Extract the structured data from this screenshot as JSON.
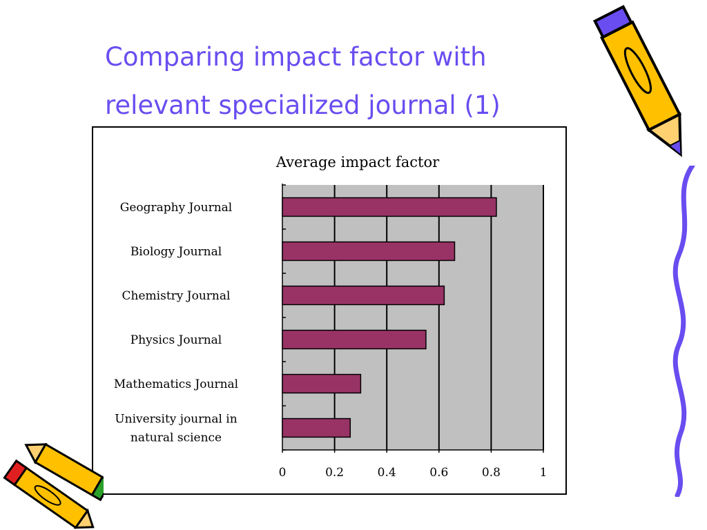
{
  "slide": {
    "title_line1": "Comparing impact factor with",
    "title_line2": "relevant specialized journal (1)",
    "title_color": "#6a4df0"
  },
  "chart_data": {
    "type": "bar",
    "orientation": "horizontal",
    "title": "Average impact factor",
    "categories": [
      "Geography Journal",
      "Biology Journal",
      "Chemistry Journal",
      "Physics Journal",
      "Mathematics Journal",
      "University journal in natural science"
    ],
    "category_lines": [
      [
        "Geography Journal"
      ],
      [
        "Biology Journal"
      ],
      [
        "Chemistry Journal"
      ],
      [
        "Physics Journal"
      ],
      [
        "Mathematics Journal"
      ],
      [
        "University journal in",
        "natural science"
      ]
    ],
    "values": [
      0.82,
      0.66,
      0.62,
      0.55,
      0.3,
      0.26
    ],
    "xlim": [
      0,
      1
    ],
    "xticks": [
      0,
      0.2,
      0.4,
      0.6,
      0.8,
      1
    ],
    "xtick_labels": [
      "0",
      "0.2",
      "0.4",
      "0.6",
      "0.8",
      "1"
    ],
    "grid": true,
    "legend": "none",
    "bar_color": "#993366",
    "plot_background": "#c0c0c0"
  },
  "decorations": {
    "pencil_top_right": "pencil-icon",
    "pencils_bottom_left": "pencil-icon",
    "wavy_line_right": "wavy-line-icon"
  }
}
